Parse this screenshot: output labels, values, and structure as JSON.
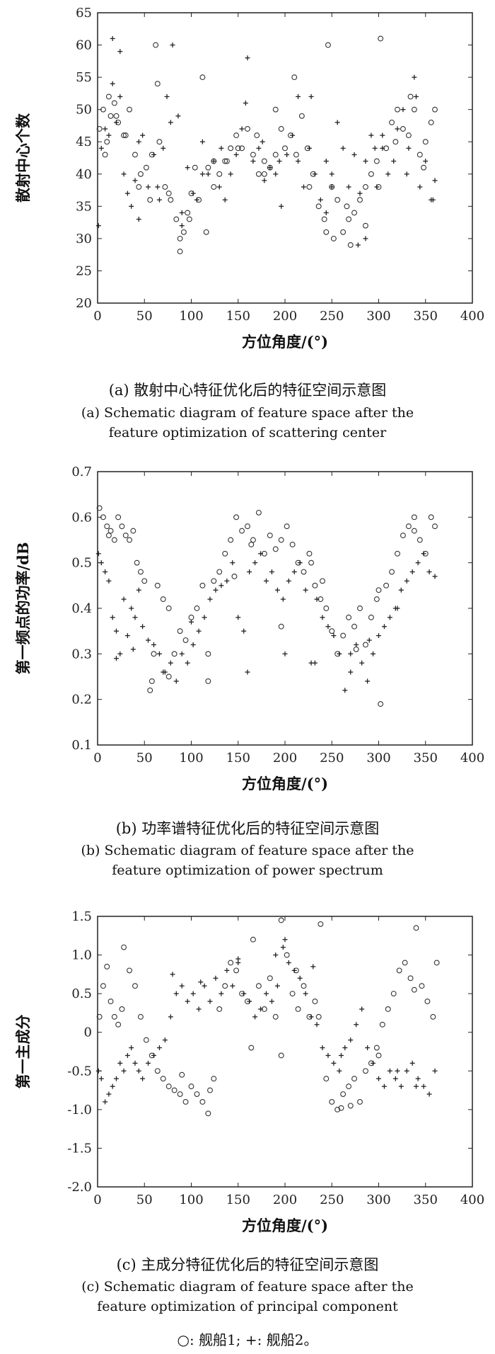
{
  "chart_data": [
    {
      "type": "scatter",
      "xlabel": "方位角度/(°)",
      "ylabel": "散射中心个数",
      "xlim": [
        0,
        400
      ],
      "ylim": [
        20,
        65
      ],
      "xticks": [
        "0",
        "50",
        "100",
        "150",
        "200",
        "250",
        "300",
        "350",
        "400"
      ],
      "yticks": [
        "20",
        "25",
        "30",
        "35",
        "40",
        "45",
        "50",
        "55",
        "60",
        "65"
      ],
      "caption_cn": "(a) 散射中心特征优化后的特征空间示意图",
      "caption_en": [
        "(a) Schematic diagram of feature space after the",
        "feature optimization of scattering center"
      ],
      "series": [
        {
          "name": "舰船1",
          "marker": "circle",
          "x": [
            2,
            6,
            10,
            14,
            18,
            22,
            28,
            34,
            40,
            46,
            52,
            58,
            62,
            66,
            72,
            78,
            84,
            88,
            92,
            96,
            100,
            104,
            108,
            112,
            118,
            124,
            130,
            136,
            142,
            148,
            154,
            160,
            166,
            172,
            178,
            184,
            190,
            196,
            200,
            206,
            212,
            218,
            224,
            230,
            236,
            242,
            246,
            250,
            256,
            262,
            268,
            274,
            280,
            286,
            292,
            298,
            302,
            308,
            314,
            320,
            326,
            332,
            338,
            344,
            350,
            356,
            360,
            12,
            30,
            64,
            88,
            116,
            150,
            190,
            244,
            266,
            300,
            20,
            44,
            76,
            124,
            170,
            210,
            252,
            286,
            334,
            8,
            56,
            98,
            138,
            178,
            226,
            270,
            318,
            348
          ],
          "y": [
            47,
            50,
            45,
            49,
            51,
            48,
            46,
            50,
            43,
            40,
            41,
            43,
            60,
            45,
            38,
            36,
            33,
            28,
            31,
            34,
            37,
            41,
            36,
            55,
            41,
            38,
            40,
            42,
            44,
            46,
            44,
            47,
            43,
            40,
            42,
            41,
            43,
            47,
            44,
            46,
            43,
            49,
            44,
            40,
            35,
            33,
            60,
            38,
            36,
            31,
            33,
            34,
            36,
            38,
            40,
            42,
            61,
            44,
            48,
            50,
            47,
            46,
            50,
            43,
            45,
            48,
            50,
            52,
            46,
            54,
            30,
            31,
            44,
            50,
            31,
            35,
            38,
            49,
            38,
            37,
            42,
            46,
            55,
            30,
            32,
            52,
            43,
            36,
            33,
            42,
            40,
            38,
            29,
            45,
            41
          ]
        },
        {
          "name": "舰船2",
          "marker": "plus",
          "x": [
            1,
            4,
            8,
            12,
            16,
            20,
            24,
            28,
            32,
            36,
            40,
            44,
            48,
            54,
            60,
            66,
            70,
            74,
            80,
            86,
            90,
            96,
            102,
            106,
            112,
            118,
            124,
            130,
            136,
            142,
            148,
            154,
            160,
            166,
            172,
            178,
            184,
            190,
            196,
            202,
            208,
            214,
            220,
            226,
            232,
            238,
            244,
            250,
            256,
            262,
            268,
            274,
            280,
            286,
            292,
            298,
            304,
            310,
            316,
            320,
            326,
            332,
            338,
            344,
            350,
            356,
            360,
            16,
            24,
            78,
            158,
            228,
            278,
            286,
            340,
            64,
            112,
            176,
            214,
            244,
            296,
            330,
            358,
            44,
            90,
            132,
            194,
            250,
            304
          ],
          "y": [
            32,
            44,
            47,
            46,
            61,
            48,
            59,
            40,
            37,
            35,
            39,
            33,
            46,
            38,
            43,
            36,
            44,
            52,
            60,
            49,
            34,
            41,
            37,
            36,
            45,
            40,
            42,
            38,
            36,
            40,
            43,
            47,
            58,
            42,
            44,
            39,
            41,
            40,
            35,
            43,
            46,
            52,
            38,
            44,
            40,
            36,
            42,
            40,
            48,
            44,
            38,
            43,
            37,
            42,
            46,
            38,
            44,
            40,
            42,
            47,
            50,
            44,
            55,
            38,
            42,
            36,
            39,
            54,
            52,
            48,
            51,
            52,
            29,
            30,
            52,
            38,
            40,
            45,
            42,
            34,
            44,
            40,
            36,
            45,
            32,
            44,
            42,
            38,
            46
          ]
        }
      ]
    },
    {
      "type": "scatter",
      "xlabel": "方位角度/(°)",
      "ylabel": "第一频点的功率/dB",
      "xlim": [
        0,
        400
      ],
      "ylim": [
        0.1,
        0.7
      ],
      "xticks": [
        "0",
        "50",
        "100",
        "150",
        "200",
        "250",
        "300",
        "350",
        "400"
      ],
      "yticks": [
        "0.1",
        "0.2",
        "0.3",
        "0.4",
        "0.5",
        "0.6",
        "0.7"
      ],
      "caption_cn": "(b) 功率谱特征优化后的特征空间示意图",
      "caption_en": [
        "(b) Schematic diagram of feature space after the",
        "feature optimization of power spectrum"
      ],
      "series": [
        {
          "name": "舰船1",
          "marker": "circle",
          "x": [
            2,
            6,
            10,
            14,
            18,
            22,
            26,
            30,
            34,
            38,
            42,
            46,
            50,
            56,
            60,
            64,
            70,
            76,
            82,
            88,
            94,
            100,
            106,
            112,
            118,
            124,
            130,
            136,
            142,
            148,
            154,
            160,
            166,
            172,
            178,
            184,
            190,
            196,
            202,
            208,
            214,
            220,
            226,
            232,
            238,
            244,
            250,
            256,
            262,
            268,
            274,
            280,
            286,
            292,
            298,
            302,
            308,
            314,
            320,
            326,
            332,
            338,
            344,
            350,
            356,
            360,
            58,
            118,
            300,
            164,
            196,
            240,
            12,
            76,
            146,
            228,
            276,
            338
          ],
          "y": [
            0.62,
            0.6,
            0.58,
            0.57,
            0.55,
            0.6,
            0.58,
            0.56,
            0.55,
            0.57,
            0.5,
            0.48,
            0.46,
            0.22,
            0.3,
            0.45,
            0.42,
            0.4,
            0.3,
            0.35,
            0.33,
            0.38,
            0.4,
            0.45,
            0.24,
            0.46,
            0.48,
            0.52,
            0.55,
            0.6,
            0.57,
            0.58,
            0.55,
            0.61,
            0.52,
            0.56,
            0.53,
            0.55,
            0.58,
            0.54,
            0.5,
            0.48,
            0.52,
            0.45,
            0.42,
            0.4,
            0.35,
            0.3,
            0.34,
            0.38,
            0.36,
            0.4,
            0.32,
            0.38,
            0.42,
            0.19,
            0.45,
            0.48,
            0.52,
            0.56,
            0.58,
            0.6,
            0.55,
            0.52,
            0.6,
            0.58,
            0.24,
            0.3,
            0.44,
            0.54,
            0.36,
            0.46,
            0.56,
            0.25,
            0.47,
            0.5,
            0.31,
            0.57
          ]
        },
        {
          "name": "舰船2",
          "marker": "plus",
          "x": [
            1,
            4,
            8,
            12,
            16,
            20,
            24,
            28,
            32,
            36,
            40,
            44,
            48,
            54,
            60,
            66,
            72,
            78,
            84,
            90,
            96,
            102,
            108,
            114,
            120,
            126,
            132,
            138,
            144,
            150,
            156,
            162,
            168,
            174,
            180,
            186,
            192,
            198,
            204,
            210,
            216,
            222,
            228,
            234,
            240,
            246,
            252,
            258,
            264,
            270,
            276,
            282,
            288,
            294,
            300,
            306,
            312,
            318,
            324,
            330,
            336,
            342,
            348,
            354,
            360,
            20,
            38,
            70,
            100,
            160,
            200,
            232,
            270,
            290,
            320
          ],
          "y": [
            0.52,
            0.5,
            0.48,
            0.46,
            0.38,
            0.35,
            0.3,
            0.42,
            0.34,
            0.4,
            0.38,
            0.44,
            0.36,
            0.33,
            0.32,
            0.3,
            0.26,
            0.28,
            0.24,
            0.3,
            0.28,
            0.32,
            0.35,
            0.38,
            0.42,
            0.44,
            0.45,
            0.46,
            0.5,
            0.38,
            0.35,
            0.48,
            0.5,
            0.52,
            0.46,
            0.48,
            0.44,
            0.42,
            0.46,
            0.48,
            0.5,
            0.44,
            0.28,
            0.42,
            0.38,
            0.36,
            0.34,
            0.3,
            0.22,
            0.3,
            0.32,
            0.28,
            0.24,
            0.3,
            0.34,
            0.36,
            0.38,
            0.4,
            0.44,
            0.46,
            0.48,
            0.5,
            0.52,
            0.48,
            0.47,
            0.29,
            0.31,
            0.26,
            0.37,
            0.26,
            0.3,
            0.28,
            0.26,
            0.33,
            0.4
          ]
        }
      ]
    },
    {
      "type": "scatter",
      "xlabel": "方位角度/(°)",
      "ylabel": "第一主成分",
      "xlim": [
        0,
        400
      ],
      "ylim": [
        -2.0,
        1.5
      ],
      "xticks": [
        "0",
        "50",
        "100",
        "150",
        "200",
        "250",
        "300",
        "350",
        "400"
      ],
      "yticks": [
        "-2.0",
        "-1.5",
        "-1.0",
        "-0.5",
        "0",
        "0.5",
        "1.0",
        "1.5"
      ],
      "caption_cn": "(c) 主成分特征优化后的特征空间示意图",
      "caption_en": [
        "(c) Schematic diagram of feature space after the",
        "feature optimization of principal component"
      ],
      "series": [
        {
          "name": "舰船1",
          "marker": "circle",
          "x": [
            2,
            6,
            10,
            14,
            18,
            22,
            28,
            34,
            40,
            46,
            52,
            58,
            64,
            70,
            76,
            82,
            88,
            94,
            100,
            106,
            112,
            118,
            124,
            130,
            136,
            142,
            148,
            154,
            160,
            166,
            172,
            178,
            184,
            190,
            196,
            202,
            208,
            214,
            220,
            226,
            232,
            238,
            244,
            250,
            256,
            262,
            268,
            274,
            280,
            286,
            292,
            298,
            304,
            310,
            316,
            322,
            328,
            334,
            340,
            346,
            352,
            358,
            362,
            196,
            212,
            236,
            164,
            270,
            26,
            90,
            120,
            338,
            300,
            260
          ],
          "y": [
            0.2,
            0.6,
            0.85,
            0.4,
            0.2,
            0.1,
            1.1,
            0.8,
            0.6,
            0.2,
            -0.1,
            -0.3,
            -0.5,
            -0.6,
            -0.7,
            -0.75,
            -0.8,
            -0.9,
            -0.7,
            -0.8,
            -0.9,
            -1.05,
            -0.6,
            0.3,
            0.6,
            0.9,
            0.8,
            0.5,
            0.4,
            1.2,
            0.6,
            0.3,
            0.7,
            0.2,
            1.45,
            1.0,
            0.5,
            0.3,
            0.6,
            0.2,
            0.4,
            1.4,
            -0.6,
            -0.9,
            -1.0,
            -0.8,
            -0.7,
            -0.6,
            -0.9,
            -0.5,
            -0.4,
            -0.2,
            0.1,
            0.3,
            0.5,
            0.8,
            0.9,
            0.7,
            1.35,
            0.6,
            0.4,
            0.2,
            0.9,
            -0.3,
            0.8,
            0.2,
            -0.2,
            -0.95,
            0.3,
            -0.55,
            -0.75,
            0.55,
            -0.3,
            -0.98
          ]
        },
        {
          "name": "舰船2",
          "marker": "plus",
          "x": [
            1,
            4,
            8,
            12,
            16,
            20,
            24,
            28,
            32,
            36,
            40,
            44,
            48,
            54,
            60,
            66,
            72,
            78,
            84,
            90,
            96,
            102,
            108,
            114,
            120,
            126,
            132,
            138,
            144,
            150,
            156,
            162,
            168,
            174,
            180,
            186,
            192,
            198,
            204,
            210,
            216,
            222,
            228,
            234,
            240,
            246,
            252,
            258,
            264,
            270,
            276,
            282,
            288,
            294,
            300,
            306,
            312,
            318,
            324,
            330,
            336,
            342,
            348,
            354,
            360,
            80,
            110,
            150,
            190,
            200,
            230,
            260,
            320,
            340
          ],
          "y": [
            -0.5,
            -0.6,
            -0.9,
            -0.8,
            -0.7,
            -0.6,
            -0.4,
            -0.5,
            -0.3,
            -0.2,
            -0.4,
            -0.5,
            -0.6,
            -0.4,
            -0.3,
            -0.2,
            -0.1,
            0.2,
            0.5,
            0.6,
            0.4,
            0.5,
            0.3,
            0.6,
            0.4,
            0.7,
            0.5,
            0.8,
            0.6,
            0.9,
            0.5,
            0.4,
            0.2,
            0.3,
            0.5,
            0.4,
            0.6,
            1.1,
            0.9,
            0.8,
            0.7,
            0.5,
            0.2,
            0.1,
            -0.2,
            -0.3,
            -0.4,
            -0.5,
            -0.2,
            -0.1,
            0.1,
            0.3,
            -0.2,
            -0.4,
            -0.6,
            -0.7,
            -0.5,
            -0.6,
            -0.7,
            -0.5,
            -0.4,
            -0.6,
            -0.7,
            -0.8,
            -0.5,
            0.75,
            0.65,
            0.95,
            1.0,
            1.2,
            0.85,
            -0.3,
            -0.5,
            -0.7
          ]
        }
      ]
    }
  ],
  "legend": {
    "circle_label": "○: 舰船1;",
    "plus_label": "+: 舰船2。"
  }
}
